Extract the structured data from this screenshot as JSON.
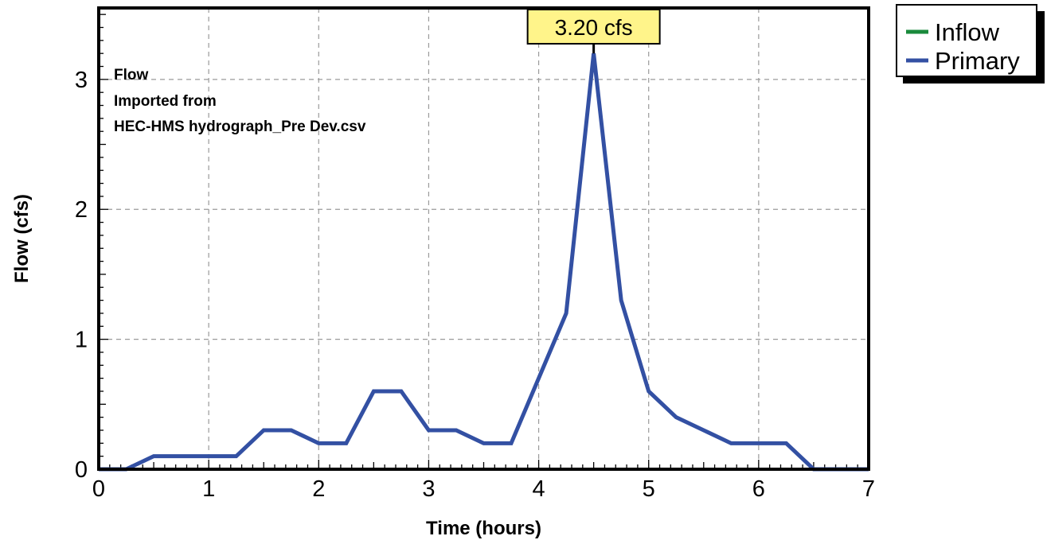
{
  "chart_data": {
    "type": "line",
    "xlabel": "Time  (hours)",
    "ylabel": "Flow  (cfs)",
    "xlim": [
      0,
      7
    ],
    "ylim": [
      0,
      3.55
    ],
    "x_ticks": [
      "0",
      "1",
      "2",
      "3",
      "4",
      "5",
      "6",
      "7"
    ],
    "y_ticks": [
      "0",
      "1",
      "2",
      "3"
    ],
    "grid": true,
    "legend_position": "top-right outside",
    "annotation_lines": [
      "Flow",
      "Imported from",
      "HEC-HMS hydrograph_Pre Dev.csv"
    ],
    "peak_label": "3.20 cfs",
    "peak": {
      "x": 4.5,
      "y": 3.2
    },
    "series": [
      {
        "name": "Inflow",
        "color": "#1a8a3c",
        "x": [
          0,
          7
        ],
        "y": [
          0,
          0
        ]
      },
      {
        "name": "Primary",
        "color": "#3350a3",
        "x": [
          0,
          0.25,
          0.5,
          0.75,
          1.0,
          1.25,
          1.5,
          1.75,
          2.0,
          2.25,
          2.5,
          2.75,
          3.0,
          3.25,
          3.5,
          3.75,
          4.0,
          4.25,
          4.5,
          4.75,
          5.0,
          5.25,
          5.5,
          5.75,
          6.0,
          6.25,
          6.5,
          7.0
        ],
        "y": [
          0,
          0,
          0.1,
          0.1,
          0.1,
          0.1,
          0.3,
          0.3,
          0.2,
          0.2,
          0.6,
          0.6,
          0.3,
          0.3,
          0.2,
          0.2,
          0.7,
          1.2,
          3.2,
          1.3,
          0.6,
          0.4,
          0.3,
          0.2,
          0.2,
          0.2,
          0.0,
          0.0
        ]
      }
    ]
  }
}
